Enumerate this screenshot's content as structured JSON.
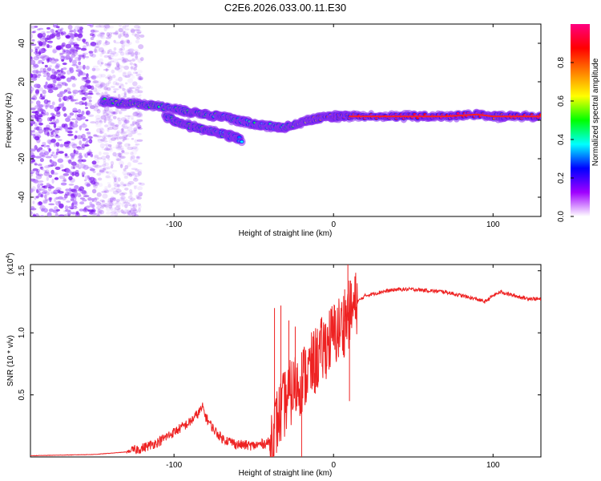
{
  "chart_data": [
    {
      "type": "heatmap",
      "title": "C2E6.2026.033.00.11.E30",
      "xlabel": "Height of straight line (km)",
      "ylabel": "Frequency (Hz)",
      "xlim": [
        -190,
        130
      ],
      "ylim": [
        -50,
        50
      ],
      "xticks": [
        -100,
        0,
        100
      ],
      "xtick_labels": [
        "-100",
        "0",
        "100"
      ],
      "yticks": [
        -40,
        -20,
        0,
        20,
        40
      ],
      "ytick_labels": [
        "-40",
        "-20",
        "0",
        "20",
        "40"
      ],
      "colorbar": {
        "label": "Normalized spectral amplitude",
        "range": [
          0.0,
          1.0
        ],
        "ticks": [
          0.0,
          0.2,
          0.4,
          0.6,
          0.8
        ],
        "tick_labels": [
          "0.0",
          "0.2",
          "0.4",
          "0.6",
          "0.8"
        ],
        "colors": [
          "#ffffff",
          "#a000ff",
          "#0000ff",
          "#00ffff",
          "#00ff00",
          "#ffff00",
          "#ff8000",
          "#ff0000",
          "#ff0080"
        ]
      },
      "ridge": {
        "x": [
          -145,
          -130,
          -115,
          -100,
          -90,
          -80,
          -70,
          -60,
          -50,
          -40,
          -30,
          -20,
          -10,
          0,
          10,
          30,
          50,
          70,
          90,
          100,
          110,
          130
        ],
        "freq": [
          10,
          9,
          8,
          6,
          4,
          3,
          2,
          0,
          -2,
          -3,
          -4,
          -1,
          1,
          2,
          2,
          2,
          2,
          2,
          3,
          2,
          2,
          2
        ],
        "amplitude": [
          0.5,
          0.55,
          0.5,
          0.45,
          0.5,
          0.5,
          0.45,
          0.45,
          0.45,
          0.4,
          0.5,
          0.6,
          0.75,
          0.8,
          0.85,
          0.95,
          0.95,
          0.95,
          0.95,
          0.8,
          0.9,
          0.9
        ]
      },
      "secondary_ridge": {
        "x": [
          -105,
          -95,
          -85,
          -75,
          -65,
          -58
        ],
        "freq": [
          2,
          -2,
          -4,
          -6,
          -8,
          -10
        ],
        "amplitude": [
          0.45,
          0.5,
          0.5,
          0.45,
          0.4,
          0.35
        ]
      },
      "noise_region_x": [
        -190,
        -130
      ]
    },
    {
      "type": "line",
      "title": "",
      "xlabel": "Height of straight line (km)",
      "ylabel": "SNR (10 * v/v)",
      "y_multiplier": "(x10",
      "y_multiplier_exp": "4",
      "y_multiplier_close": ")",
      "xlim": [
        -190,
        130
      ],
      "ylim": [
        0,
        1.55
      ],
      "xticks": [
        -100,
        0,
        100
      ],
      "xtick_labels": [
        "-100",
        "0",
        "100"
      ],
      "yticks": [
        0.5,
        1.0,
        1.5
      ],
      "ytick_labels": [
        "0.5",
        "1.0",
        "1.5"
      ],
      "series": [
        {
          "name": "SNR",
          "color": "#ee2222",
          "x": [
            -190,
            -150,
            -130,
            -120,
            -110,
            -100,
            -90,
            -85,
            -82,
            -80,
            -75,
            -70,
            -60,
            -50,
            -40,
            -35,
            -30,
            -25,
            -20,
            -15,
            -10,
            -5,
            0,
            5,
            10,
            15,
            20,
            30,
            40,
            50,
            60,
            70,
            80,
            90,
            95,
            100,
            105,
            110,
            120,
            130
          ],
          "values": [
            0.01,
            0.02,
            0.04,
            0.07,
            0.12,
            0.2,
            0.28,
            0.35,
            0.4,
            0.32,
            0.22,
            0.15,
            0.1,
            0.09,
            0.12,
            0.3,
            0.45,
            0.55,
            0.62,
            0.7,
            0.8,
            0.9,
            0.98,
            1.05,
            1.15,
            1.25,
            1.3,
            1.33,
            1.35,
            1.35,
            1.34,
            1.33,
            1.3,
            1.27,
            1.25,
            1.3,
            1.33,
            1.31,
            1.28,
            1.27
          ]
        }
      ],
      "spikes": [
        {
          "x": -37,
          "top": 1.2
        },
        {
          "x": -33,
          "top": 1.22
        },
        {
          "x": -28,
          "top": 1.1
        },
        {
          "x": -24,
          "top": 1.05
        },
        {
          "x": 9,
          "top": 1.55
        },
        {
          "x": 7,
          "top": 1.35
        }
      ],
      "dips": [
        {
          "x": -20,
          "bottom": 0.0
        },
        {
          "x": 10,
          "bottom": 0.45
        },
        {
          "x": -40,
          "bottom": 0.05
        }
      ]
    }
  ]
}
